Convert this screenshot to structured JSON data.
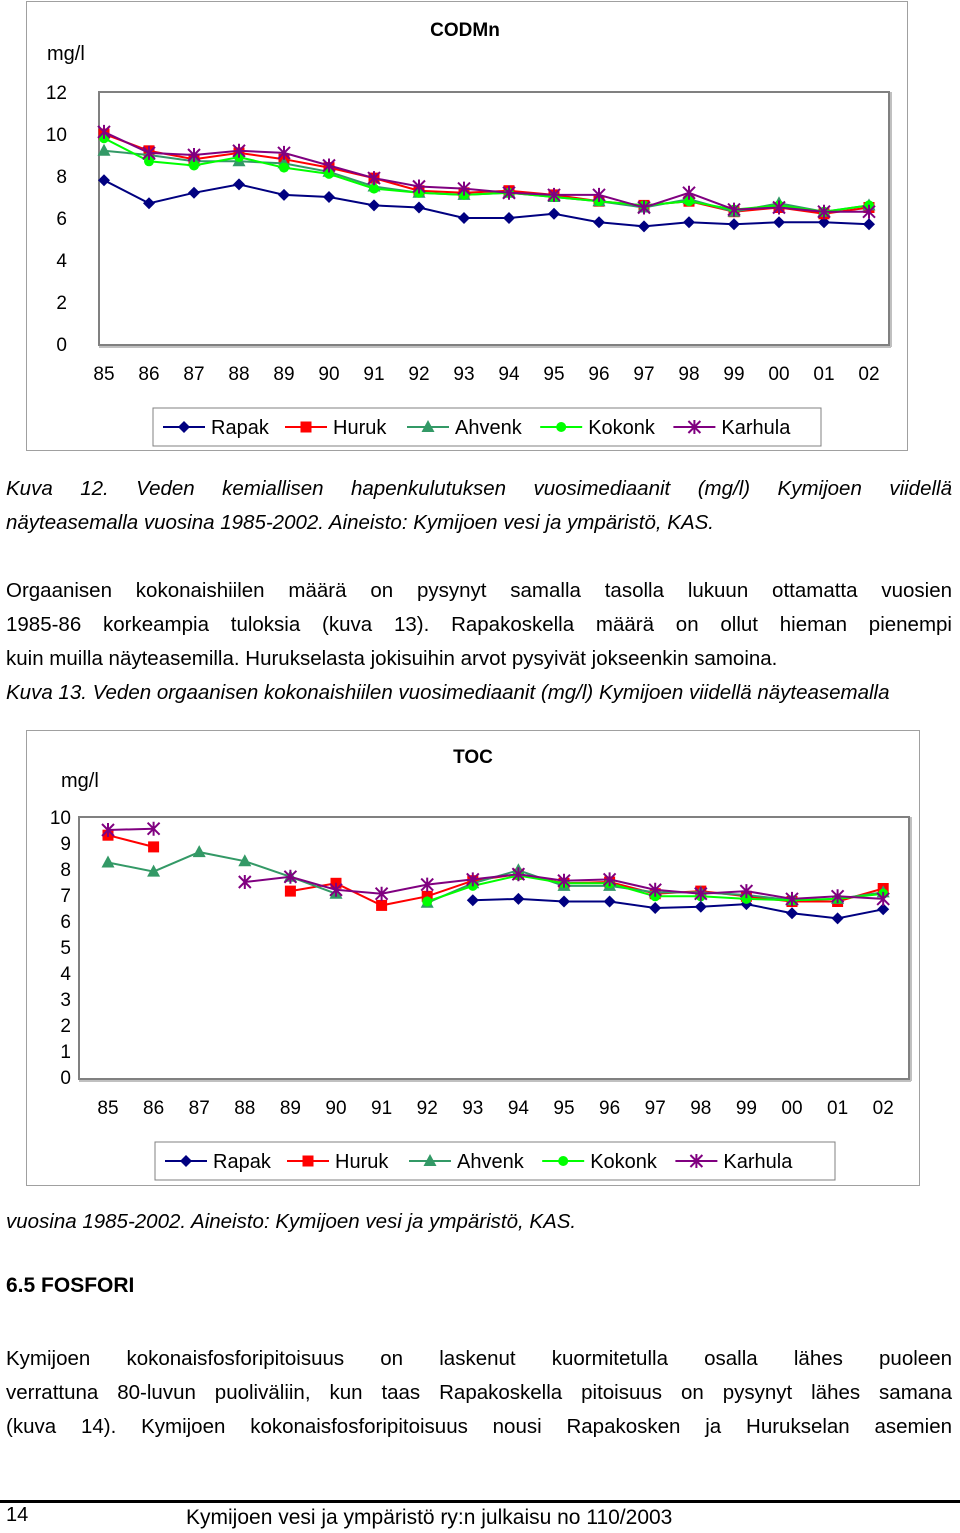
{
  "chart_data": [
    {
      "type": "line",
      "title": "CODMn",
      "ylabel": "mg/l",
      "xlabel": "",
      "ylim": [
        0,
        12
      ],
      "yticks": [
        0,
        2,
        4,
        6,
        8,
        10,
        12
      ],
      "categories": [
        "85",
        "86",
        "87",
        "88",
        "89",
        "90",
        "91",
        "92",
        "93",
        "94",
        "95",
        "96",
        "97",
        "98",
        "99",
        "00",
        "01",
        "02"
      ],
      "legend_position": "bottom",
      "grid": false,
      "series": [
        {
          "name": "Rapak",
          "color": "#000080",
          "marker": "diamond",
          "values": [
            7.8,
            6.7,
            7.2,
            7.6,
            7.1,
            7.0,
            6.6,
            6.5,
            6.0,
            6.0,
            6.2,
            5.8,
            5.6,
            5.8,
            5.7,
            5.8,
            5.8,
            5.7
          ]
        },
        {
          "name": "Huruk",
          "color": "#ff0000",
          "marker": "square",
          "values": [
            10.0,
            9.2,
            8.8,
            9.1,
            8.8,
            8.4,
            7.9,
            7.3,
            7.2,
            7.3,
            7.1,
            6.8,
            6.6,
            6.8,
            6.3,
            6.5,
            6.2,
            6.5
          ]
        },
        {
          "name": "Ahvenk",
          "color": "#339966",
          "marker": "triangle",
          "values": [
            9.2,
            9.0,
            8.7,
            8.7,
            8.6,
            8.2,
            7.5,
            7.2,
            7.1,
            7.2,
            7.0,
            6.8,
            6.5,
            6.9,
            6.3,
            6.7,
            6.3,
            6.6
          ]
        },
        {
          "name": "Kokonk",
          "color": "#00ff00",
          "marker": "circle",
          "values": [
            9.8,
            8.7,
            8.5,
            8.9,
            8.4,
            8.1,
            7.4,
            7.2,
            7.1,
            7.2,
            7.0,
            6.8,
            6.6,
            6.8,
            6.4,
            6.6,
            6.3,
            6.6
          ]
        },
        {
          "name": "Karhula",
          "color": "#800080",
          "marker": "star",
          "values": [
            10.1,
            9.1,
            9.0,
            9.2,
            9.1,
            8.5,
            7.9,
            7.5,
            7.4,
            7.2,
            7.1,
            7.1,
            6.5,
            7.2,
            6.4,
            6.5,
            6.3,
            6.3
          ]
        }
      ]
    },
    {
      "type": "line",
      "title": "TOC",
      "ylabel": "mg/l",
      "xlabel": "",
      "ylim": [
        0,
        10
      ],
      "yticks": [
        0,
        1,
        2,
        3,
        4,
        5,
        6,
        7,
        8,
        9,
        10
      ],
      "categories": [
        "85",
        "86",
        "87",
        "88",
        "89",
        "90",
        "91",
        "92",
        "93",
        "94",
        "95",
        "96",
        "97",
        "98",
        "99",
        "00",
        "01",
        "02"
      ],
      "legend_position": "bottom",
      "grid": false,
      "series": [
        {
          "name": "Rapak",
          "color": "#000080",
          "marker": "diamond",
          "values": [
            null,
            null,
            null,
            null,
            null,
            null,
            null,
            null,
            6.8,
            6.85,
            6.75,
            6.75,
            6.5,
            6.55,
            6.65,
            6.3,
            6.1,
            6.45
          ]
        },
        {
          "name": "Huruk",
          "color": "#ff0000",
          "marker": "square",
          "values": [
            9.3,
            8.85,
            null,
            null,
            7.15,
            7.45,
            6.6,
            6.95,
            7.55,
            7.8,
            7.45,
            7.5,
            7.05,
            7.15,
            6.95,
            6.75,
            6.75,
            7.25
          ]
        },
        {
          "name": "Ahvenk",
          "color": "#339966",
          "marker": "triangle",
          "values": [
            8.25,
            7.9,
            8.65,
            8.3,
            7.7,
            7.05,
            null,
            6.7,
            7.45,
            7.95,
            7.35,
            7.35,
            7.1,
            7.1,
            7.0,
            6.8,
            6.85,
            7.1
          ]
        },
        {
          "name": "Kokonk",
          "color": "#00ff00",
          "marker": "circle",
          "values": [
            null,
            null,
            null,
            null,
            null,
            null,
            null,
            6.75,
            7.35,
            7.75,
            7.45,
            7.45,
            6.95,
            6.95,
            6.85,
            6.8,
            6.85,
            7.05
          ]
        },
        {
          "name": "Karhula",
          "color": "#800080",
          "marker": "star",
          "values": [
            9.5,
            9.55,
            null,
            7.5,
            7.7,
            7.2,
            7.05,
            7.4,
            7.6,
            7.8,
            7.55,
            7.6,
            7.2,
            7.05,
            7.15,
            6.85,
            6.95,
            6.85
          ]
        }
      ]
    }
  ],
  "text": {
    "caption12": [
      "Kuva 12. Veden kemiallisen hapenkulutuksen vuosimediaanit (mg/l) Kymijoen viidellä",
      "näyteasemalla vuosina 1985-2002. Aineisto: Kymijoen vesi ja ympäristö, KAS."
    ],
    "para1_line1": "Orgaanisen kokonaishiilen määrä on pysynyt samalla tasolla lukuun ottamatta vuosien",
    "para1_line2": "1985-86 korkeampia tuloksia (kuva 13). Rapakoskella määrä on ollut hieman pienempi",
    "para1_line3": "kuin muilla näyteasemilla. Hurukselasta jokisuihin arvot pysyivät jokseenkin samoina.",
    "caption13_line1": "Kuva 13. Veden orgaanisen kokonaishiilen vuosimediaanit (mg/l) Kymijoen viidellä näyteasemalla",
    "caption13_line2": "vuosina 1985-2002. Aineisto: Kymijoen vesi ja ympäristö, KAS.",
    "section_heading": "6.5 FOSFORI",
    "para2_line1": "Kymijoen kokonaisfosforipitoisuus on laskenut kuormitetulla osalla lähes puoleen",
    "para2_line2": "verrattuna 80-luvun puoliväliin, kun taas Rapakoskella pitoisuus on pysynyt lähes samana",
    "para2_line3": "(kuva 14). Kymijoen kokonaisfosforipitoisuus nousi Rapakosken ja Hurukselan asemien"
  },
  "footer": {
    "page_number": "14",
    "publication": "Kymijoen vesi ja ympäristö ry:n julkaisu no 110/2003"
  }
}
